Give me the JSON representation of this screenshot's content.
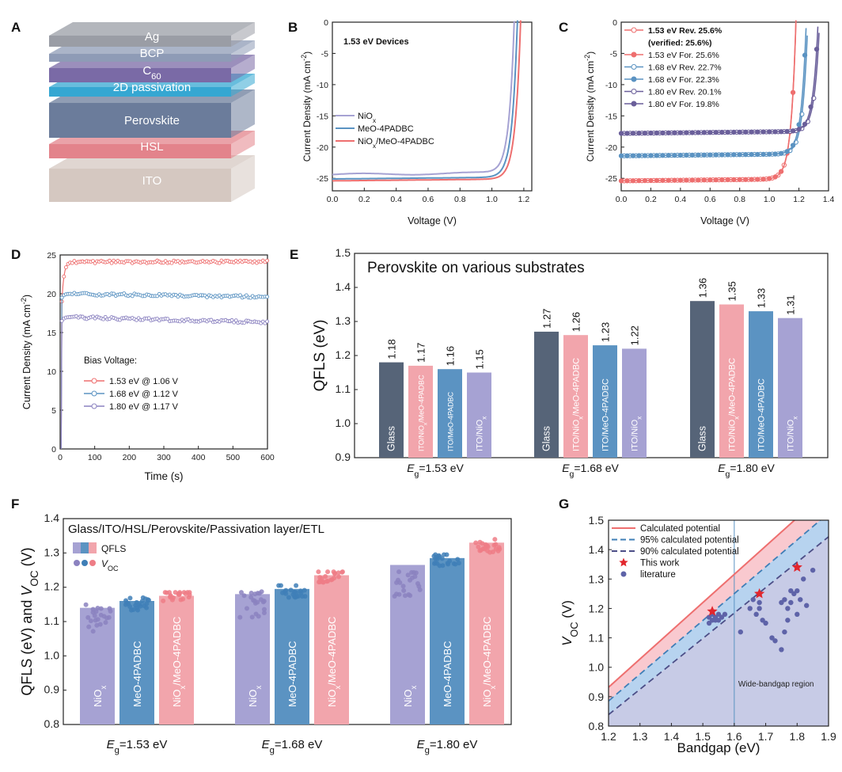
{
  "colors": {
    "red": "#ee6f6f",
    "blue": "#5b93c2",
    "purple": "#8b82c0",
    "lilac": "#a6a2d3",
    "navy": "#4c4e87",
    "dark": "#566478"
  },
  "panels": {
    "A": {
      "label": "A",
      "layers": [
        {
          "name": "Ag",
          "color": "#9a9da5"
        },
        {
          "name": "BCP",
          "color": "#8e9bb6"
        },
        {
          "name": "C60",
          "sub": "60",
          "base": "C",
          "color": "#7a6aa6"
        },
        {
          "name": "2D passivation",
          "color": "#35a7d2"
        },
        {
          "name": "Perovskite",
          "color": "#6b7c9b"
        },
        {
          "name": "HSL",
          "color": "#e3838b"
        },
        {
          "name": "ITO",
          "color": "#d5c8c1"
        }
      ]
    },
    "B": {
      "label": "B",
      "annotation": "1.53 eV Devices"
    },
    "C": {
      "label": "C"
    },
    "D": {
      "label": "D",
      "legend_title": "Bias Voltage:"
    },
    "E": {
      "label": "E"
    },
    "F": {
      "label": "F"
    },
    "G": {
      "label": "G",
      "region_label": "Wide-bandgap region"
    }
  },
  "chart_data": [
    {
      "panel": "B",
      "type": "line",
      "xlabel": "Voltage (V)",
      "ylabel": "Current Density (mA cm-2)",
      "xlim": [
        0,
        1.25
      ],
      "ylim": [
        -27,
        0
      ],
      "xticks": [
        "0.0",
        "0.2",
        "0.4",
        "0.6",
        "0.8",
        "1.0",
        "1.2"
      ],
      "yticks": [
        "0",
        "-5",
        "-10",
        "-15",
        "-20",
        "-25"
      ],
      "series": [
        {
          "name": "NiOx",
          "jsc": -24.4,
          "voc": 1.14,
          "color": "#a6a2d3"
        },
        {
          "name": "MeO-4PADBC",
          "jsc": -25.1,
          "voc": 1.16,
          "color": "#5b93c2"
        },
        {
          "name": "NiOx/MeO-4PADBC",
          "jsc": -25.4,
          "voc": 1.18,
          "color": "#ee6f6f"
        }
      ]
    },
    {
      "panel": "C",
      "type": "line",
      "xlabel": "Voltage (V)",
      "ylabel": "Current Density (mA cm-2)",
      "xlim": [
        0,
        1.4
      ],
      "ylim": [
        -27,
        0
      ],
      "xticks": [
        "0.0",
        "0.2",
        "0.4",
        "0.6",
        "0.8",
        "1.0",
        "1.2",
        "1.4"
      ],
      "yticks": [
        "0",
        "-5",
        "-10",
        "-15",
        "-20",
        "-25"
      ],
      "series": [
        {
          "name": "1.53 eV Rev. 25.6%",
          "extra": "(verified: 25.6%)",
          "jsc": -25.4,
          "voc": 1.18,
          "color": "#ee6f6f",
          "open": true
        },
        {
          "name": "1.53 eV For. 25.6%",
          "jsc": -25.4,
          "voc": 1.18,
          "color": "#ee6f6f",
          "open": false
        },
        {
          "name": "1.68 eV Rev. 22.7%",
          "jsc": -21.4,
          "voc": 1.26,
          "color": "#5b93c2",
          "open": true
        },
        {
          "name": "1.68 eV For. 22.3%",
          "jsc": -21.4,
          "voc": 1.25,
          "color": "#5b93c2",
          "open": false
        },
        {
          "name": "1.80 eV Rev. 20.1%",
          "jsc": -17.8,
          "voc": 1.34,
          "color": "#6a5f9a",
          "open": true
        },
        {
          "name": "1.80 eV For. 19.8%",
          "jsc": -17.8,
          "voc": 1.33,
          "color": "#6a5f9a",
          "open": false
        }
      ]
    },
    {
      "panel": "D",
      "type": "line",
      "xlabel": "Time (s)",
      "ylabel": "Current Density (mA cm-2)",
      "xlim": [
        0,
        600
      ],
      "ylim": [
        0,
        25
      ],
      "xticks": [
        "0",
        "100",
        "200",
        "300",
        "400",
        "500",
        "600"
      ],
      "yticks": [
        "0",
        "5",
        "10",
        "15",
        "20",
        "25"
      ],
      "series": [
        {
          "name": "1.53 eV @ 1.06 V",
          "start": 19,
          "steady": 24.1,
          "end": 24.1,
          "color": "#ee6f6f"
        },
        {
          "name": "1.68 eV @ 1.12 V",
          "start": 19.5,
          "steady": 20.0,
          "end": 19.6,
          "color": "#5b93c2"
        },
        {
          "name": "1.80 eV @ 1.17 V",
          "start": 16.5,
          "steady": 17.0,
          "end": 16.3,
          "color": "#8b82c0"
        }
      ]
    },
    {
      "panel": "E",
      "type": "bar",
      "title": "Perovskite on various substrates",
      "ylabel": "QFLS (eV)",
      "ylim": [
        0.9,
        1.5
      ],
      "yticks": [
        "0.9",
        "1.0",
        "1.1",
        "1.2",
        "1.3",
        "1.4",
        "1.5"
      ],
      "groups": [
        "Eg=1.53 eV",
        "Eg=1.68 eV",
        "Eg=1.80 eV"
      ],
      "bar_labels": [
        "Glass",
        "ITO/NiOx/MeO-4PADBC",
        "ITO/MeO-4PADBC",
        "ITO/NiOx"
      ],
      "bar_colors": [
        "#566478",
        "#f2a5ac",
        "#5b93c2",
        "#a6a2d3"
      ],
      "values": [
        [
          1.18,
          1.17,
          1.16,
          1.15
        ],
        [
          1.27,
          1.26,
          1.23,
          1.22
        ],
        [
          1.36,
          1.35,
          1.33,
          1.31
        ]
      ],
      "value_labels": [
        [
          "1.18",
          "1.17",
          "1.16",
          "1.15"
        ],
        [
          "1.27",
          "1.26",
          "1.23",
          "1.22"
        ],
        [
          "1.36",
          "1.35",
          "1.33",
          "1.31"
        ]
      ]
    },
    {
      "panel": "F",
      "type": "bar",
      "title": "Glass/ITO/HSL/Perovskite/Passivation layer/ETL",
      "ylabel": "QFLS (eV) and VOC (V)",
      "ylim": [
        0.8,
        1.4
      ],
      "yticks": [
        "0.8",
        "0.9",
        "1.0",
        "1.1",
        "1.2",
        "1.3",
        "1.4"
      ],
      "legend": [
        "QFLS",
        "VOC"
      ],
      "groups": [
        "Eg=1.53 eV",
        "Eg=1.68 eV",
        "Eg=1.80 eV"
      ],
      "bar_labels": [
        "NiOx",
        "MeO-4PADBC",
        "NiOx/MeO-4PADBC"
      ],
      "bar_colors": [
        "#a6a2d3",
        "#5b93c2",
        "#f2a5ac"
      ],
      "dot_colors": [
        "#8b82c0",
        "#3f7fb7",
        "#ee7d86"
      ],
      "qfls": [
        [
          1.14,
          1.16,
          1.175
        ],
        [
          1.18,
          1.195,
          1.235
        ],
        [
          1.265,
          1.285,
          1.33
        ]
      ],
      "voc": [
        [
          1.11,
          1.15,
          1.18
        ],
        [
          1.15,
          1.19,
          1.23
        ],
        [
          1.21,
          1.28,
          1.32
        ]
      ]
    },
    {
      "panel": "G",
      "type": "scatter",
      "xlabel": "Bandgap (eV)",
      "ylabel": "VOC (V)",
      "xlim": [
        1.2,
        1.9
      ],
      "ylim": [
        0.8,
        1.5
      ],
      "xticks": [
        "1.2",
        "1.3",
        "1.4",
        "1.5",
        "1.6",
        "1.7",
        "1.8",
        "1.9"
      ],
      "yticks": [
        "0.8",
        "0.9",
        "1.0",
        "1.1",
        "1.2",
        "1.3",
        "1.4",
        "1.5"
      ],
      "region_start": 1.6,
      "legend": [
        "Calculated potential",
        "95% calculated potential",
        "90% calculated potential",
        "This work",
        "literature"
      ],
      "this_work": [
        [
          1.53,
          1.19
        ],
        [
          1.68,
          1.25
        ],
        [
          1.8,
          1.34
        ]
      ],
      "literature": [
        [
          1.52,
          1.17
        ],
        [
          1.53,
          1.16
        ],
        [
          1.54,
          1.17
        ],
        [
          1.55,
          1.18
        ],
        [
          1.52,
          1.15
        ],
        [
          1.54,
          1.16
        ],
        [
          1.56,
          1.17
        ],
        [
          1.53,
          1.18
        ],
        [
          1.55,
          1.16
        ],
        [
          1.57,
          1.18
        ],
        [
          1.62,
          1.12
        ],
        [
          1.65,
          1.2
        ],
        [
          1.66,
          1.23
        ],
        [
          1.68,
          1.22
        ],
        [
          1.68,
          1.2
        ],
        [
          1.67,
          1.18
        ],
        [
          1.69,
          1.16
        ],
        [
          1.7,
          1.15
        ],
        [
          1.72,
          1.1
        ],
        [
          1.73,
          1.09
        ],
        [
          1.75,
          1.06
        ],
        [
          1.76,
          1.12
        ],
        [
          1.77,
          1.16
        ],
        [
          1.77,
          1.2
        ],
        [
          1.78,
          1.22
        ],
        [
          1.79,
          1.25
        ],
        [
          1.8,
          1.26
        ],
        [
          1.82,
          1.3
        ],
        [
          1.83,
          1.21
        ],
        [
          1.85,
          1.33
        ],
        [
          1.75,
          1.22
        ],
        [
          1.8,
          1.18
        ],
        [
          1.81,
          1.23
        ],
        [
          1.78,
          1.26
        ],
        [
          1.76,
          1.23
        ]
      ]
    }
  ]
}
